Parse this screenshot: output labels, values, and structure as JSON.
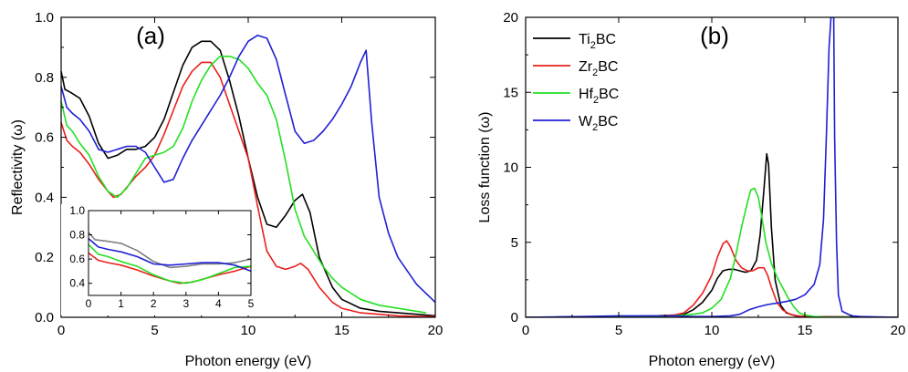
{
  "chart_data": [
    {
      "type": "line",
      "panel_label": "(a)",
      "xlabel": "Photon energy (eV)",
      "ylabel": "Reflectivity (ω)",
      "xlim": [
        0,
        20
      ],
      "ylim": [
        0,
        1.0
      ],
      "xticks": [
        "0",
        "5",
        "10",
        "15",
        "20"
      ],
      "yticks": [
        "0.0",
        "0.2",
        "0.4",
        "0.6",
        "0.8",
        "1.0"
      ],
      "series": [
        {
          "color": "#000000",
          "x": [
            0,
            0.2,
            0.5,
            1,
            1.5,
            2,
            2.5,
            3,
            3.5,
            4,
            4.5,
            5,
            5.5,
            6,
            6.5,
            7,
            7.5,
            8,
            8.5,
            9,
            9.5,
            10,
            10.5,
            11,
            11.5,
            12,
            12.5,
            12.9,
            13.3,
            13.8,
            14.5,
            15,
            16,
            17,
            18,
            19,
            20
          ],
          "y": [
            0.82,
            0.76,
            0.75,
            0.73,
            0.67,
            0.58,
            0.53,
            0.54,
            0.56,
            0.56,
            0.57,
            0.6,
            0.66,
            0.75,
            0.84,
            0.9,
            0.92,
            0.92,
            0.89,
            0.79,
            0.67,
            0.53,
            0.4,
            0.31,
            0.3,
            0.34,
            0.39,
            0.41,
            0.35,
            0.2,
            0.1,
            0.06,
            0.03,
            0.02,
            0.015,
            0.01,
            0.005
          ]
        },
        {
          "color": "#e8201c",
          "x": [
            0,
            0.3,
            0.6,
            1,
            1.5,
            2,
            2.5,
            2.8,
            3.2,
            3.6,
            4,
            4.5,
            5,
            5.5,
            6,
            6.5,
            7,
            7.5,
            8,
            8.5,
            9,
            9.5,
            10,
            10.5,
            11,
            11.5,
            12,
            12.5,
            12.8,
            13.2,
            13.8,
            14.5,
            15,
            16,
            17,
            18,
            19,
            20
          ],
          "y": [
            0.65,
            0.59,
            0.57,
            0.55,
            0.51,
            0.46,
            0.42,
            0.4,
            0.41,
            0.44,
            0.47,
            0.5,
            0.54,
            0.61,
            0.69,
            0.77,
            0.82,
            0.85,
            0.85,
            0.8,
            0.71,
            0.62,
            0.53,
            0.37,
            0.22,
            0.17,
            0.16,
            0.17,
            0.18,
            0.16,
            0.1,
            0.05,
            0.03,
            0.015,
            0.01,
            0.005,
            0.003,
            0.002
          ]
        },
        {
          "color": "#22e022",
          "x": [
            0,
            0.3,
            0.6,
            1,
            1.5,
            2,
            2.5,
            3,
            3.5,
            4,
            4.5,
            5,
            5.5,
            6,
            6.5,
            7,
            7.5,
            8,
            8.5,
            9,
            9.5,
            10,
            10.5,
            11,
            11.5,
            12,
            12.5,
            13,
            13.5,
            14,
            14.5,
            15,
            16,
            17,
            18,
            19,
            19.5
          ],
          "y": [
            0.72,
            0.64,
            0.62,
            0.58,
            0.54,
            0.47,
            0.42,
            0.4,
            0.43,
            0.48,
            0.53,
            0.54,
            0.55,
            0.57,
            0.63,
            0.72,
            0.79,
            0.84,
            0.87,
            0.87,
            0.86,
            0.83,
            0.78,
            0.74,
            0.66,
            0.52,
            0.36,
            0.27,
            0.22,
            0.17,
            0.13,
            0.1,
            0.06,
            0.04,
            0.03,
            0.02,
            0.015
          ]
        },
        {
          "color": "#1f1fd6",
          "x": [
            0,
            0.3,
            0.6,
            1,
            1.5,
            2,
            2.5,
            3,
            3.5,
            4,
            4.5,
            5,
            5.5,
            6,
            6.5,
            7,
            7.5,
            8,
            8.5,
            9,
            9.5,
            10,
            10.5,
            11,
            11.5,
            12,
            12.5,
            13,
            13.5,
            14,
            14.5,
            15,
            15.5,
            16,
            16.3,
            16.6,
            17,
            17.5,
            18,
            19,
            20
          ],
          "y": [
            0.77,
            0.7,
            0.68,
            0.66,
            0.62,
            0.56,
            0.55,
            0.56,
            0.57,
            0.57,
            0.55,
            0.5,
            0.45,
            0.46,
            0.53,
            0.59,
            0.64,
            0.69,
            0.74,
            0.8,
            0.87,
            0.92,
            0.94,
            0.93,
            0.86,
            0.74,
            0.62,
            0.58,
            0.59,
            0.62,
            0.66,
            0.71,
            0.77,
            0.85,
            0.89,
            0.65,
            0.4,
            0.28,
            0.2,
            0.11,
            0.05
          ]
        }
      ],
      "inset": {
        "xlim": [
          0,
          5
        ],
        "ylim": [
          0.3,
          1.0
        ],
        "xticks": [
          "0",
          "1",
          "2",
          "3",
          "4",
          "5"
        ],
        "yticks": [
          "0.4",
          "0.6",
          "0.8",
          "1.0"
        ],
        "series": [
          {
            "color": "#808080",
            "x": [
              0,
              0.2,
              0.5,
              1,
              1.5,
              2,
              2.5,
              3,
              3.5,
              4,
              4.5,
              5
            ],
            "y": [
              0.82,
              0.76,
              0.75,
              0.73,
              0.67,
              0.58,
              0.53,
              0.54,
              0.56,
              0.56,
              0.57,
              0.6
            ]
          },
          {
            "color": "#e8201c",
            "x": [
              0,
              0.3,
              0.6,
              1,
              1.5,
              2,
              2.5,
              2.8,
              3.2,
              3.6,
              4,
              4.5,
              5
            ],
            "y": [
              0.65,
              0.59,
              0.57,
              0.55,
              0.51,
              0.46,
              0.42,
              0.4,
              0.41,
              0.44,
              0.47,
              0.5,
              0.54
            ]
          },
          {
            "color": "#22e022",
            "x": [
              0,
              0.3,
              0.6,
              1,
              1.5,
              2,
              2.5,
              3,
              3.5,
              4,
              4.5,
              5
            ],
            "y": [
              0.72,
              0.64,
              0.62,
              0.58,
              0.54,
              0.47,
              0.42,
              0.4,
              0.43,
              0.48,
              0.53,
              0.54
            ]
          },
          {
            "color": "#1f1fd6",
            "x": [
              0,
              0.3,
              0.6,
              1,
              1.5,
              2,
              2.5,
              3,
              3.5,
              4,
              4.5,
              5
            ],
            "y": [
              0.77,
              0.7,
              0.68,
              0.66,
              0.62,
              0.56,
              0.55,
              0.56,
              0.57,
              0.57,
              0.55,
              0.5
            ]
          }
        ]
      }
    },
    {
      "type": "line",
      "panel_label": "(b)",
      "xlabel": "Photon energy (eV)",
      "ylabel": "Loss function (ω)",
      "xlim": [
        0,
        20
      ],
      "ylim": [
        0,
        20
      ],
      "xticks": [
        "0",
        "5",
        "10",
        "15",
        "20"
      ],
      "yticks": [
        "0",
        "5",
        "10",
        "15",
        "20"
      ],
      "legend": {
        "placement": "top-left",
        "entries": [
          {
            "base": "Ti",
            "sub": "2",
            "rest": "BC",
            "color": "#000000"
          },
          {
            "base": "Zr",
            "sub": "2",
            "rest": "BC",
            "color": "#e8201c"
          },
          {
            "base": "Hf",
            "sub": "2",
            "rest": "BC",
            "color": "#22e022"
          },
          {
            "base": "W",
            "sub": "2",
            "rest": "BC",
            "color": "#1f1fd6"
          }
        ]
      },
      "series": [
        {
          "color": "#000000",
          "x": [
            0,
            5,
            7,
            8,
            8.5,
            9,
            9.5,
            10,
            10.3,
            10.6,
            10.9,
            11.2,
            11.5,
            11.8,
            12.1,
            12.4,
            12.6,
            12.8,
            12.95,
            13.05,
            13.2,
            13.4,
            13.7,
            14,
            14.5,
            15,
            20
          ],
          "y": [
            0,
            0.05,
            0.1,
            0.15,
            0.2,
            0.5,
            1.0,
            1.8,
            2.6,
            3.1,
            3.2,
            3.2,
            3.1,
            3.0,
            3.1,
            3.8,
            5.5,
            8.5,
            10.9,
            10.2,
            6.0,
            2.5,
            0.8,
            0.3,
            0.1,
            0.05,
            0
          ]
        },
        {
          "color": "#e8201c",
          "x": [
            0,
            5,
            7,
            8,
            8.5,
            9,
            9.5,
            10,
            10.3,
            10.6,
            10.8,
            11,
            11.3,
            11.6,
            11.9,
            12.2,
            12.5,
            12.8,
            13,
            13.2,
            13.5,
            13.8,
            14.2,
            14.6,
            15,
            20
          ],
          "y": [
            0,
            0.05,
            0.1,
            0.15,
            0.3,
            0.8,
            1.6,
            2.8,
            4.0,
            4.9,
            5.1,
            4.7,
            3.8,
            3.3,
            3.1,
            3.1,
            3.3,
            3.3,
            2.8,
            2.0,
            1.0,
            0.5,
            0.2,
            0.1,
            0.05,
            0
          ]
        },
        {
          "color": "#22e022",
          "x": [
            0,
            5,
            8,
            9,
            9.5,
            10,
            10.5,
            11,
            11.3,
            11.6,
            11.9,
            12.1,
            12.3,
            12.5,
            12.7,
            12.9,
            13.2,
            13.5,
            13.8,
            14.1,
            14.4,
            14.7,
            15,
            15.5,
            16,
            20
          ],
          "y": [
            0,
            0.05,
            0.1,
            0.2,
            0.3,
            0.6,
            1.2,
            2.6,
            4.2,
            6.0,
            7.6,
            8.5,
            8.6,
            8.0,
            6.6,
            5.0,
            3.6,
            2.7,
            2.0,
            1.3,
            0.7,
            0.3,
            0.15,
            0.05,
            0.02,
            0
          ]
        },
        {
          "color": "#1f1fd6",
          "x": [
            0,
            3,
            5,
            7,
            8,
            9,
            10,
            11,
            11.5,
            12,
            12.5,
            13,
            13.5,
            14,
            14.5,
            15,
            15.5,
            15.8,
            16.0,
            16.15,
            16.3,
            16.4,
            16.45,
            16.55,
            16.6,
            16.7,
            16.8,
            17,
            17.5,
            18,
            20
          ],
          "y": [
            0,
            0.05,
            0.1,
            0.1,
            0.1,
            0.05,
            0.05,
            0.1,
            0.2,
            0.5,
            0.7,
            0.85,
            0.95,
            1.05,
            1.2,
            1.5,
            2.2,
            3.5,
            6.5,
            12,
            18,
            20,
            20,
            20,
            12,
            5,
            1.5,
            0.4,
            0.1,
            0.05,
            0
          ]
        }
      ]
    }
  ]
}
